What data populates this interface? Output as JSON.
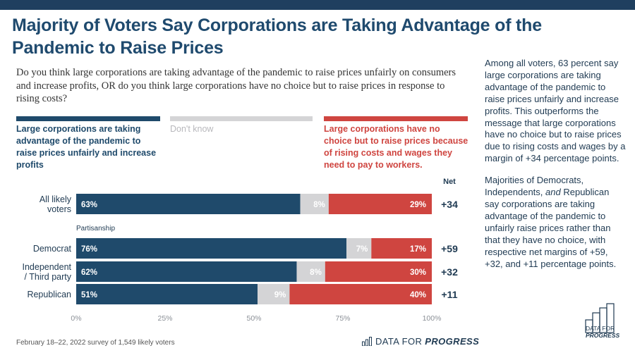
{
  "title": "Majority of Voters Say Corporations are Taking Advantage of the Pandemic to Raise Prices",
  "question": "Do you think large corporations are taking advantage of the pandemic to raise prices unfairly on consumers and increase profits, OR do you think large corporations have no choice but to raise prices in response to rising costs?",
  "legend": [
    {
      "label": "Large corporations are taking advantage of the pandemic to raise prices unfairly and increase profits",
      "color": "#1f4a6b"
    },
    {
      "label": "Don't know",
      "color": "#d4d4d6"
    },
    {
      "label": "Large corporations have no choice but to raise prices because of rising costs and wages they need to pay to workers.",
      "color": "#cf4540"
    }
  ],
  "sidebar": {
    "para1": "Among all voters, 63 percent say large corporations are taking advantage of the pandemic to raise prices unfairly and increase profits. This outperforms the message that large corporations have no choice but to raise prices due to rising costs and wages by a margin of +34 percentage points.",
    "para2_a": "Majorities of Democrats, Independents, ",
    "para2_em": "and",
    "para2_b": " Republican say corporations are taking advantage of the pandemic to unfairly raise prices rather than that they have no choice, with respective net margins of +59, +32, and +11 percentage points."
  },
  "footer": {
    "note": "February 18–22, 2022 survey of 1,549 likely voters",
    "brand_prefix": "DATA FOR",
    "brand_bold": "PROGRESS",
    "logo_line1": "DATA FOR",
    "logo_line2": "PROGRESS"
  },
  "chart_data": {
    "type": "bar",
    "orientation": "horizontal",
    "stacked": true,
    "net_header": "Net",
    "group_label": "Partisanship",
    "categories": [
      "All likely voters",
      "Democrat",
      "Independent / Third party",
      "Republican"
    ],
    "series": [
      {
        "name": "Large corporations are taking advantage of the pandemic to raise prices unfairly and increase profits",
        "color": "#1f4a6b",
        "values": [
          63,
          76,
          62,
          51
        ]
      },
      {
        "name": "Don't know",
        "color": "#d4d4d6",
        "values": [
          8,
          7,
          8,
          9
        ]
      },
      {
        "name": "Large corporations have no choice but to raise prices because of rising costs and wages they need to pay to workers.",
        "color": "#cf4540",
        "values": [
          29,
          17,
          30,
          40
        ]
      }
    ],
    "net": [
      "+34",
      "+59",
      "+32",
      "+11"
    ],
    "xticks": [
      "0%",
      "25%",
      "50%",
      "75%",
      "100%"
    ],
    "xlim": [
      0,
      100
    ]
  }
}
